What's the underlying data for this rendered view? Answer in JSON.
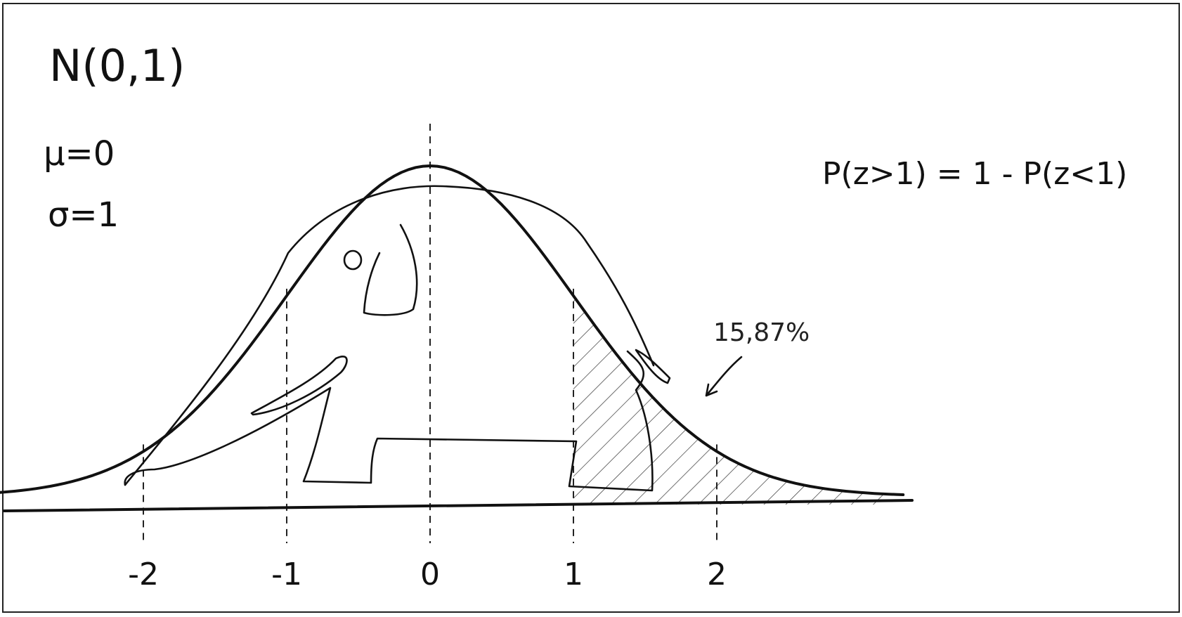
{
  "title": "N(0,1)",
  "params": {
    "mu": "μ=0",
    "sigma": "σ=1"
  },
  "formula": "P(z>1) = 1 - P(z<1)",
  "shaded_area_label": "15,87%",
  "chart_data": {
    "type": "area",
    "distribution": "standard normal",
    "mean": 0,
    "sd": 1,
    "xlim": [
      -3.1,
      3.3
    ],
    "x_ticks": [
      -2,
      -1,
      0,
      1,
      2
    ],
    "tick_labels": [
      "-2",
      "-1",
      "0",
      "1",
      "2"
    ],
    "shaded_region": {
      "from": 1,
      "to": 3.2,
      "probability": 0.1587,
      "label": "15,87%"
    },
    "grid": false,
    "notes_drawn": [
      "elephant sketch inside curve"
    ]
  }
}
